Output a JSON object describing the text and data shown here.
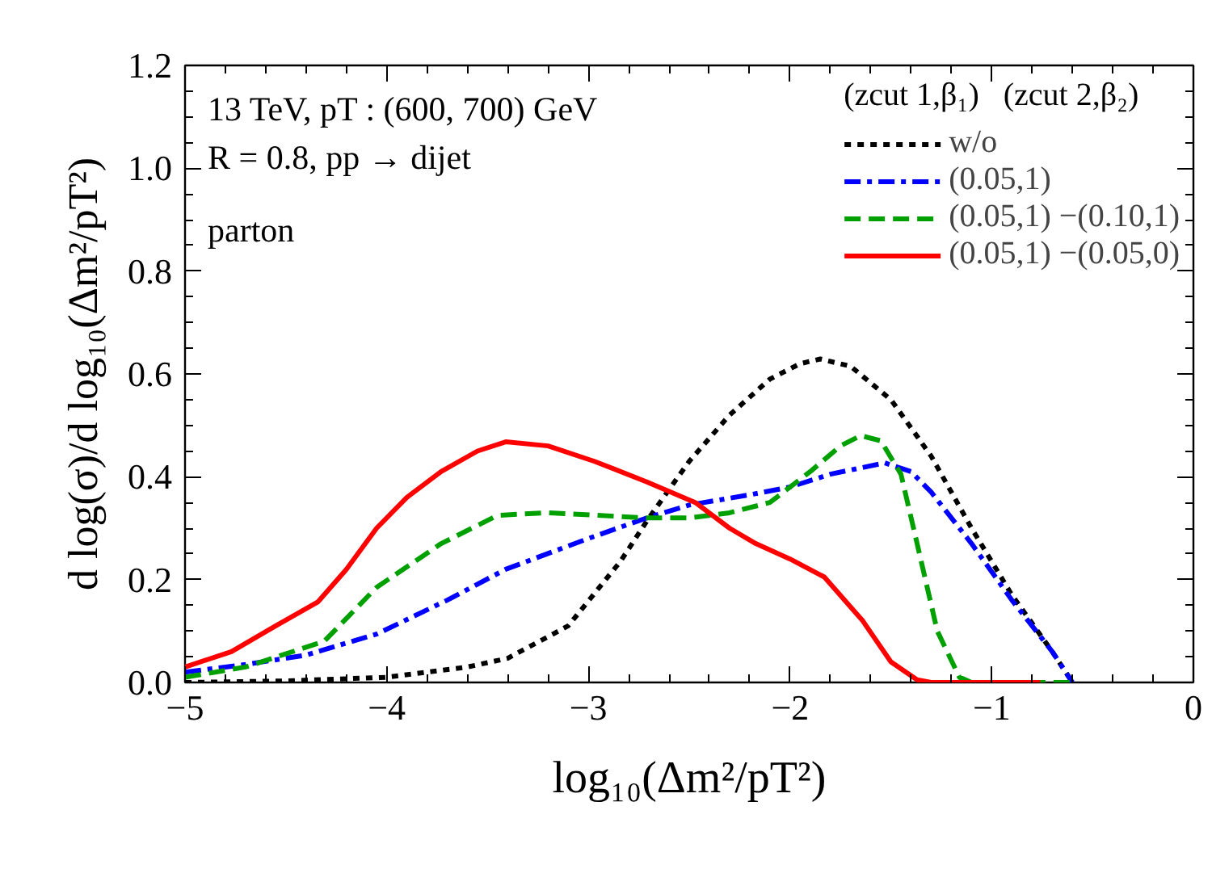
{
  "chart_data": {
    "type": "line",
    "xlabel": "log₁₀(Δm²/pT²)",
    "ylabel": "d log(σ)/d log₁₀(Δm²/pT²)",
    "legend_title": "(zcut 1,β₁)   (zcut 2,β₂)",
    "annotations": [
      "13 TeV, pT : (600, 700) GeV",
      "R = 0.8,   pp → dijet",
      "parton"
    ],
    "xlim": [
      -5,
      0
    ],
    "ylim": [
      0,
      1.2
    ],
    "xticks": [
      {
        "value": -5,
        "label": "−5"
      },
      {
        "value": -4,
        "label": "−4"
      },
      {
        "value": -3,
        "label": "−3"
      },
      {
        "value": -2,
        "label": "−2"
      },
      {
        "value": -1,
        "label": "−1"
      },
      0
    ],
    "yticks": [
      {
        "value": 0,
        "label": "0.0"
      },
      {
        "value": 0.2,
        "label": "0.2"
      },
      {
        "value": 0.4,
        "label": "0.4"
      },
      {
        "value": 0.6,
        "label": "0.6"
      },
      {
        "value": 0.8,
        "label": "0.8"
      },
      {
        "value": 1.0,
        "label": "1.0"
      },
      {
        "value": 1.2,
        "label": "1.2"
      }
    ],
    "grid": false,
    "legend": "top right",
    "series": [
      {
        "name": "w/o",
        "color": "#000000",
        "line_style": "dotted",
        "x": [
          -5,
          -4.5,
          -4,
          -3.6,
          -3.4,
          -3.1,
          -2.84,
          -2.7,
          -2.5,
          -2.3,
          -2.1,
          -1.95,
          -1.85,
          -1.7,
          -1.5,
          -1.3,
          -1.1,
          -0.9,
          -0.7,
          -0.6
        ],
        "values": [
          0,
          0.003,
          0.01,
          0.03,
          0.047,
          0.11,
          0.236,
          0.32,
          0.43,
          0.52,
          0.59,
          0.62,
          0.629,
          0.615,
          0.55,
          0.44,
          0.3,
          0.17,
          0.06,
          0
        ]
      },
      {
        "name": "(0.05,1)",
        "color": "#0000ff",
        "line_style": "dashdot",
        "x": [
          -5,
          -4.7,
          -4.4,
          -4.05,
          -3.7,
          -3.41,
          -3.0,
          -2.71,
          -2.5,
          -2.2,
          -2.0,
          -1.8,
          -1.53,
          -1.4,
          -1.3,
          -1.1,
          -0.9,
          -0.7,
          -0.6
        ],
        "values": [
          0.02,
          0.035,
          0.053,
          0.094,
          0.16,
          0.22,
          0.28,
          0.32,
          0.345,
          0.365,
          0.38,
          0.405,
          0.427,
          0.41,
          0.37,
          0.27,
          0.16,
          0.06,
          0
        ]
      },
      {
        "name": "(0.05,1) −(0.10,1)",
        "color": "#00a000",
        "line_style": "dashed",
        "x": [
          -5,
          -4.7,
          -4.31,
          -4.05,
          -3.73,
          -3.45,
          -3.2,
          -2.71,
          -2.5,
          -2.3,
          -2.1,
          -1.9,
          -1.75,
          -1.65,
          -1.55,
          -1.45,
          -1.37,
          -1.27,
          -1.16,
          -1.1,
          -0.6
        ],
        "values": [
          0.01,
          0.03,
          0.08,
          0.185,
          0.27,
          0.325,
          0.33,
          0.32,
          0.32,
          0.33,
          0.35,
          0.41,
          0.46,
          0.48,
          0.47,
          0.405,
          0.27,
          0.1,
          0.01,
          0,
          0
        ]
      },
      {
        "name": "(0.05,1) −(0.05,0)",
        "color": "#ff0000",
        "line_style": "solid",
        "x": [
          -5,
          -4.77,
          -4.55,
          -4.34,
          -4.2,
          -4.05,
          -3.9,
          -3.73,
          -3.55,
          -3.41,
          -3.2,
          -2.97,
          -2.71,
          -2.47,
          -2.3,
          -2.17,
          -2.0,
          -1.83,
          -1.64,
          -1.5,
          -1.37,
          -1.3,
          -0.76
        ],
        "values": [
          0.03,
          0.06,
          0.11,
          0.157,
          0.22,
          0.3,
          0.36,
          0.41,
          0.45,
          0.468,
          0.46,
          0.43,
          0.39,
          0.35,
          0.3,
          0.27,
          0.24,
          0.205,
          0.12,
          0.04,
          0.005,
          0,
          0
        ]
      }
    ]
  }
}
